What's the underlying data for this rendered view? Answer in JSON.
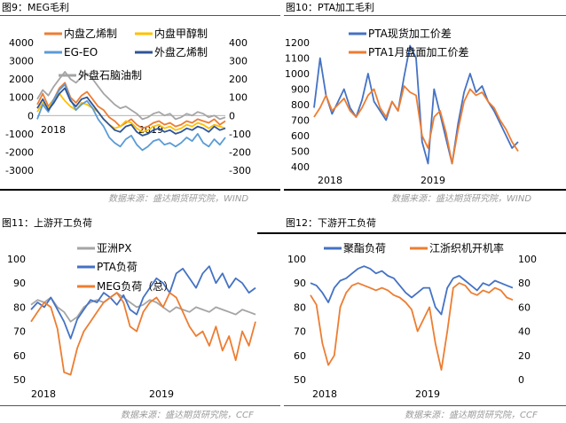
{
  "panels": {
    "fig9": {
      "title": "图9：MEG毛利"
    },
    "fig10": {
      "title": "图10：PTA加工毛利"
    },
    "fig11": {
      "title": "图11：上游开工负荷"
    },
    "fig12": {
      "title": "图12：下游开工负荷"
    }
  },
  "sources": {
    "top_left": "数据来源：盛达期货研究院，WIND",
    "top_right": "数据来源：盛达期货研究院，WIND",
    "bottom_left": "数据来源：盛达期货研究院，CCF",
    "bottom_right": "数据来源：盛达期货研究院，CCF"
  },
  "colors": {
    "orange": "#ED7D31",
    "yellow": "#FFC000",
    "lightblue": "#5B9BD5",
    "darkblue": "#4472C4",
    "gray": "#A5A5A5"
  },
  "chart_data": [
    {
      "id": "fig9",
      "type": "line",
      "ylim_left": [
        -3000,
        4000
      ],
      "yticks_left": [
        "4000",
        "3000",
        "2000",
        "1000",
        "0",
        "-1000",
        "-2000",
        "-3000"
      ],
      "ylim_right": [
        -300,
        400
      ],
      "yticks_right": [
        "400",
        "300",
        "200",
        "100",
        "0",
        "-100",
        "-200",
        "-300"
      ],
      "x_ticks": [
        "2018",
        "2019"
      ],
      "series": [
        {
          "name": "内盘乙烯制",
          "color": "#ED7D31",
          "axis": "left",
          "values": [
            600,
            1200,
            500,
            900,
            1500,
            1800,
            1000,
            700,
            1100,
            1300,
            900,
            500,
            300,
            -100,
            -300,
            -600,
            -400,
            -200,
            -500,
            -700,
            -600,
            -400,
            -300,
            -500,
            -400,
            -600,
            -500,
            -300,
            -400,
            -200,
            -300,
            -400,
            -200,
            -500,
            -300
          ]
        },
        {
          "name": "内盘甲醇制",
          "color": "#FFC000",
          "axis": "left",
          "values": [
            200,
            700,
            400,
            900,
            1200,
            800,
            500,
            300,
            700,
            600,
            400,
            200,
            -200,
            -500,
            -700,
            -600,
            -300,
            -400,
            -700,
            -900,
            -800,
            -600,
            -500,
            -700,
            -600,
            -800,
            -700,
            -500,
            -600,
            -400,
            -500,
            -700,
            -500,
            -600,
            -700
          ]
        },
        {
          "name": "EG-EO",
          "color": "#5B9BD5",
          "axis": "right",
          "values": [
            -20,
            60,
            20,
            90,
            140,
            170,
            90,
            30,
            60,
            80,
            40,
            -20,
            -60,
            -120,
            -150,
            -170,
            -130,
            -110,
            -160,
            -190,
            -170,
            -140,
            -130,
            -160,
            -150,
            -170,
            -150,
            -120,
            -140,
            -100,
            -150,
            -170,
            -130,
            -160,
            -120
          ]
        },
        {
          "name": "外盘乙烯制",
          "color": "#2F5597",
          "axis": "left",
          "values": [
            400,
            900,
            300,
            700,
            1200,
            1500,
            800,
            500,
            900,
            1000,
            600,
            200,
            -200,
            -500,
            -800,
            -900,
            -600,
            -500,
            -900,
            -1100,
            -1000,
            -800,
            -700,
            -900,
            -800,
            -1000,
            -900,
            -700,
            -800,
            -600,
            -700,
            -900,
            -600,
            -800,
            -700
          ]
        },
        {
          "name": "外盘石脑油制",
          "color": "#A5A5A5",
          "axis": "left",
          "values": [
            900,
            1400,
            1100,
            1600,
            2000,
            2400,
            2000,
            1800,
            2100,
            2300,
            2000,
            1600,
            1200,
            900,
            600,
            400,
            500,
            300,
            100,
            -200,
            -100,
            100,
            200,
            0,
            100,
            -200,
            -100,
            100,
            0,
            200,
            100,
            -100,
            0,
            -200,
            -100
          ]
        }
      ]
    },
    {
      "id": "fig10",
      "type": "line",
      "ylim": [
        400,
        1200
      ],
      "yticks": [
        "1200",
        "1100",
        "1000",
        "900",
        "800",
        "700",
        "600",
        "500",
        "400"
      ],
      "x_ticks": [
        "2018",
        "2019"
      ],
      "series": [
        {
          "name": "PTA现货加工价差",
          "color": "#4472C4",
          "values": [
            780,
            1100,
            860,
            740,
            820,
            900,
            780,
            720,
            830,
            1000,
            820,
            760,
            700,
            820,
            760,
            980,
            1180,
            1100,
            560,
            420,
            900,
            740,
            580,
            420,
            680,
            880,
            1000,
            880,
            920,
            820,
            760,
            680,
            600,
            520,
            560
          ]
        },
        {
          "name": "PTA1月盘面加工价差",
          "color": "#ED7D31",
          "values": [
            720,
            780,
            860,
            760,
            800,
            840,
            760,
            720,
            780,
            860,
            900,
            780,
            720,
            820,
            760,
            920,
            880,
            860,
            600,
            520,
            720,
            760,
            620,
            420,
            640,
            820,
            900,
            860,
            880,
            820,
            780,
            700,
            640,
            560,
            500
          ]
        }
      ]
    },
    {
      "id": "fig11",
      "type": "line",
      "ylim": [
        50,
        100
      ],
      "yticks": [
        "100",
        "90",
        "80",
        "70",
        "60",
        "50"
      ],
      "x_ticks": [
        "2018",
        "2019"
      ],
      "series": [
        {
          "name": "亚洲PX",
          "color": "#A5A5A5",
          "values": [
            81,
            83,
            82,
            84,
            80,
            78,
            74,
            76,
            80,
            82,
            83,
            82,
            84,
            86,
            84,
            82,
            80,
            81,
            83,
            82,
            80,
            78,
            80,
            79,
            78,
            80,
            79,
            78,
            80,
            79,
            78,
            77,
            79,
            78,
            77
          ]
        },
        {
          "name": "PTA负荷",
          "color": "#4472C4",
          "values": [
            79,
            82,
            80,
            84,
            79,
            74,
            67,
            75,
            79,
            83,
            82,
            86,
            84,
            81,
            85,
            79,
            77,
            84,
            88,
            92,
            90,
            86,
            94,
            96,
            92,
            88,
            94,
            97,
            90,
            94,
            88,
            92,
            90,
            86,
            88
          ]
        },
        {
          "name": "MEG负荷（总）",
          "color": "#ED7D31",
          "values": [
            74,
            78,
            82,
            80,
            71,
            53,
            52,
            63,
            70,
            74,
            78,
            82,
            84,
            86,
            82,
            72,
            70,
            78,
            82,
            84,
            80,
            86,
            84,
            78,
            72,
            68,
            70,
            64,
            72,
            62,
            68,
            58,
            70,
            64,
            74
          ]
        }
      ]
    },
    {
      "id": "fig12",
      "type": "line",
      "ylim_left": [
        50,
        100
      ],
      "yticks_left": [
        "100",
        "90",
        "80",
        "70",
        "60",
        "50"
      ],
      "ylim_right": [
        0,
        100
      ],
      "yticks_right": [
        "100",
        "80",
        "60",
        "40",
        "20",
        "0"
      ],
      "x_ticks": [
        "2018",
        "2019"
      ],
      "series": [
        {
          "name": "聚酯负荷",
          "color": "#4472C4",
          "axis": "left",
          "values": [
            90,
            89,
            86,
            82,
            88,
            91,
            92,
            94,
            96,
            97,
            96,
            94,
            95,
            93,
            92,
            89,
            86,
            84,
            86,
            88,
            88,
            80,
            77,
            88,
            92,
            93,
            91,
            89,
            87,
            90,
            89,
            91,
            90,
            89,
            88
          ]
        },
        {
          "name": "江浙织机开机率",
          "color": "#ED7D31",
          "axis": "right",
          "values": [
            70,
            62,
            30,
            12,
            20,
            60,
            72,
            78,
            80,
            78,
            76,
            74,
            76,
            74,
            70,
            68,
            64,
            58,
            40,
            50,
            60,
            30,
            8,
            40,
            76,
            80,
            78,
            72,
            70,
            74,
            72,
            76,
            74,
            68,
            66
          ]
        }
      ]
    }
  ]
}
